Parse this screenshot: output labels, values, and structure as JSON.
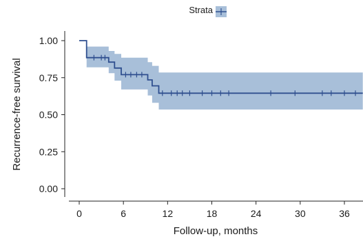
{
  "chart_data": {
    "type": "line",
    "subtype": "kaplan-meier",
    "xlabel": "Follow-up, months",
    "ylabel": "Recurrence-free survival",
    "xlim": [
      -1.9,
      38.5
    ],
    "ylim": [
      -0.07,
      1.06
    ],
    "x_ticks": [
      0,
      6,
      12,
      18,
      24,
      30,
      36
    ],
    "y_ticks": [
      0.0,
      0.25,
      0.5,
      0.75,
      1.0
    ],
    "y_tick_labels": [
      "0.00",
      "0.25",
      "0.50",
      "0.75",
      "1.00"
    ],
    "grid": false,
    "legend": {
      "title": "Strata",
      "position": "top-center"
    },
    "colors": {
      "line": "#2f4f8f",
      "band": "#a8bfd9",
      "axis": "#222222"
    },
    "series": [
      {
        "step": [
          [
            0,
            1.0
          ],
          [
            1,
            0.885
          ],
          [
            4,
            0.855
          ],
          [
            4.8,
            0.815
          ],
          [
            5.7,
            0.77
          ],
          [
            9.3,
            0.735
          ],
          [
            9.9,
            0.695
          ],
          [
            10.8,
            0.645
          ],
          [
            38.5,
            0.645
          ]
        ],
        "ci_lower": [
          [
            0,
            1.0
          ],
          [
            1,
            0.82
          ],
          [
            4,
            0.78
          ],
          [
            4.8,
            0.73
          ],
          [
            5.7,
            0.67
          ],
          [
            9.3,
            0.63
          ],
          [
            9.9,
            0.58
          ],
          [
            10.8,
            0.535
          ],
          [
            38.5,
            0.535
          ]
        ],
        "ci_upper": [
          [
            0,
            1.0
          ],
          [
            1,
            0.96
          ],
          [
            4,
            0.93
          ],
          [
            4.8,
            0.91
          ],
          [
            5.7,
            0.885
          ],
          [
            9.3,
            0.855
          ],
          [
            9.9,
            0.83
          ],
          [
            10.8,
            0.785
          ],
          [
            38.5,
            0.785
          ]
        ],
        "censored": [
          [
            2,
            0.885
          ],
          [
            3,
            0.885
          ],
          [
            3.5,
            0.885
          ],
          [
            6.3,
            0.77
          ],
          [
            7,
            0.77
          ],
          [
            7.8,
            0.77
          ],
          [
            8.5,
            0.77
          ],
          [
            11.3,
            0.645
          ],
          [
            12.5,
            0.645
          ],
          [
            13.3,
            0.645
          ],
          [
            14,
            0.645
          ],
          [
            15,
            0.645
          ],
          [
            16.7,
            0.645
          ],
          [
            18,
            0.645
          ],
          [
            19.2,
            0.645
          ],
          [
            20.3,
            0.645
          ],
          [
            26,
            0.645
          ],
          [
            29.3,
            0.645
          ],
          [
            33,
            0.645
          ],
          [
            34.2,
            0.645
          ],
          [
            36,
            0.645
          ],
          [
            37.5,
            0.645
          ]
        ]
      }
    ]
  }
}
